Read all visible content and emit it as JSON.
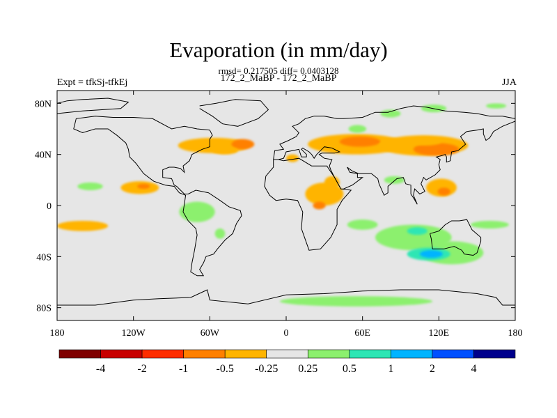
{
  "title": "Evaporation (in mm/day)",
  "stats_line": "rmsd= 0.217505 diff= 0.0403128",
  "subtitle_center": "172_2_MaBP - 172_2_MaBP",
  "subtitle_left": "Expt = tfkSj-tfkEj",
  "subtitle_right": "JJA",
  "map": {
    "background_color": "#e6e6e6",
    "coastline_color": "#000000",
    "lon_range": [
      -180,
      180
    ],
    "lat_range": [
      -90,
      90
    ],
    "x_ticks": [
      {
        "value": -180,
        "label": "180"
      },
      {
        "value": -120,
        "label": "120W"
      },
      {
        "value": -60,
        "label": "60W"
      },
      {
        "value": 0,
        "label": "0"
      },
      {
        "value": 60,
        "label": "60E"
      },
      {
        "value": 120,
        "label": "120E"
      },
      {
        "value": 180,
        "label": "180"
      }
    ],
    "y_ticks": [
      {
        "value": 80,
        "label": "80N"
      },
      {
        "value": 40,
        "label": "40N"
      },
      {
        "value": 0,
        "label": "0"
      },
      {
        "value": -40,
        "label": "40S"
      },
      {
        "value": -80,
        "label": "80S"
      }
    ]
  },
  "colorbar": {
    "colors": [
      "#7f0000",
      "#c80000",
      "#ff2d00",
      "#ff8000",
      "#ffb400",
      "#e6e6e6",
      "#8cf06e",
      "#2de6b4",
      "#00b4ff",
      "#0050ff",
      "#00008c"
    ],
    "labels": [
      "-4",
      "-2",
      "-1",
      "-0.5",
      "-0.25",
      "0.25",
      "0.5",
      "1",
      "2",
      "4"
    ]
  },
  "anomalies": [
    {
      "lon": -57,
      "lat": 47,
      "rx": 28,
      "ry": 6,
      "color": "#ffb400"
    },
    {
      "lon": -34,
      "lat": 48,
      "rx": 9,
      "ry": 4,
      "color": "#ff8000"
    },
    {
      "lon": -48,
      "lat": 43,
      "rx": 10,
      "ry": 3,
      "color": "#ffb400"
    },
    {
      "lon": 5,
      "lat": 37,
      "rx": 5,
      "ry": 3,
      "color": "#ffb400"
    },
    {
      "lon": 30,
      "lat": 9,
      "rx": 15,
      "ry": 9,
      "color": "#ffb400"
    },
    {
      "lon": 26,
      "lat": 0,
      "rx": 5,
      "ry": 3,
      "color": "#ff8000"
    },
    {
      "lon": 36,
      "lat": 18,
      "rx": 6,
      "ry": 5,
      "color": "#ffb400"
    },
    {
      "lon": 55,
      "lat": 48,
      "rx": 38,
      "ry": 8,
      "color": "#ffb400"
    },
    {
      "lon": 58,
      "lat": 50,
      "rx": 16,
      "ry": 4,
      "color": "#ff8000"
    },
    {
      "lon": 108,
      "lat": 47,
      "rx": 35,
      "ry": 8,
      "color": "#ffb400"
    },
    {
      "lon": 118,
      "lat": 44,
      "rx": 18,
      "ry": 5,
      "color": "#ff8000"
    },
    {
      "lon": 110,
      "lat": 50,
      "rx": 12,
      "ry": 3,
      "color": "#ffb400"
    },
    {
      "lon": 122,
      "lat": 14,
      "rx": 12,
      "ry": 7,
      "color": "#ffb400"
    },
    {
      "lon": 124,
      "lat": 11,
      "rx": 5,
      "ry": 3,
      "color": "#ff8000"
    },
    {
      "lon": -115,
      "lat": 14,
      "rx": 15,
      "ry": 5,
      "color": "#ffb400"
    },
    {
      "lon": -112,
      "lat": 15,
      "rx": 5,
      "ry": 2,
      "color": "#ff8000"
    },
    {
      "lon": -160,
      "lat": -16,
      "rx": 20,
      "ry": 4,
      "color": "#ffb400"
    },
    {
      "lon": 56,
      "lat": 60,
      "rx": 7,
      "ry": 3,
      "color": "#8cf06e"
    },
    {
      "lon": 82,
      "lat": 72,
      "rx": 8,
      "ry": 3,
      "color": "#8cf06e"
    },
    {
      "lon": 116,
      "lat": 76,
      "rx": 10,
      "ry": 3,
      "color": "#8cf06e"
    },
    {
      "lon": 165,
      "lat": 78,
      "rx": 8,
      "ry": 2,
      "color": "#8cf06e"
    },
    {
      "lon": -154,
      "lat": 15,
      "rx": 10,
      "ry": 3,
      "color": "#8cf06e"
    },
    {
      "lon": -70,
      "lat": -5,
      "rx": 14,
      "ry": 8,
      "color": "#8cf06e"
    },
    {
      "lon": -52,
      "lat": -22,
      "rx": 4,
      "ry": 4,
      "color": "#8cf06e"
    },
    {
      "lon": 60,
      "lat": -15,
      "rx": 12,
      "ry": 4,
      "color": "#8cf06e"
    },
    {
      "lon": 100,
      "lat": -25,
      "rx": 30,
      "ry": 10,
      "color": "#8cf06e"
    },
    {
      "lon": 130,
      "lat": -37,
      "rx": 25,
      "ry": 9,
      "color": "#8cf06e"
    },
    {
      "lon": 103,
      "lat": -20,
      "rx": 8,
      "ry": 3,
      "color": "#2de6b4"
    },
    {
      "lon": 112,
      "lat": -38,
      "rx": 17,
      "ry": 5,
      "color": "#2de6b4"
    },
    {
      "lon": 114,
      "lat": -38,
      "rx": 9,
      "ry": 3,
      "color": "#00b4ff"
    },
    {
      "lon": 55,
      "lat": -75,
      "rx": 60,
      "ry": 4,
      "color": "#8cf06e"
    },
    {
      "lon": 160,
      "lat": -15,
      "rx": 15,
      "ry": 3,
      "color": "#8cf06e"
    },
    {
      "lon": 85,
      "lat": 20,
      "rx": 8,
      "ry": 3,
      "color": "#8cf06e"
    }
  ],
  "coastlines": [
    [
      [
        -180,
        80
      ],
      [
        -172,
        82
      ],
      [
        -160,
        83
      ],
      [
        -140,
        84
      ],
      [
        -124,
        81
      ],
      [
        -130,
        76
      ],
      [
        -160,
        74
      ],
      [
        -180,
        72
      ]
    ],
    [
      [
        -68,
        78
      ],
      [
        -55,
        80
      ],
      [
        -40,
        83
      ],
      [
        -20,
        82
      ],
      [
        -14,
        75
      ],
      [
        -22,
        68
      ],
      [
        -38,
        62
      ],
      [
        -50,
        64
      ],
      [
        -58,
        70
      ],
      [
        -68,
        76
      ]
    ],
    [
      [
        -60,
        59
      ],
      [
        -70,
        60
      ],
      [
        -80,
        62
      ],
      [
        -90,
        60
      ],
      [
        -105,
        68
      ],
      [
        -120,
        69
      ],
      [
        -136,
        69
      ],
      [
        -150,
        70
      ],
      [
        -165,
        68
      ],
      [
        -167,
        60
      ],
      [
        -160,
        57
      ],
      [
        -150,
        60
      ],
      [
        -140,
        60
      ],
      [
        -133,
        55
      ],
      [
        -126,
        49
      ],
      [
        -124,
        44
      ],
      [
        -123,
        38
      ],
      [
        -118,
        33
      ],
      [
        -112,
        25
      ],
      [
        -104,
        19
      ],
      [
        -95,
        16
      ],
      [
        -88,
        15
      ],
      [
        -84,
        10
      ],
      [
        -79,
        8
      ],
      [
        -80,
        1
      ],
      [
        -81,
        -5
      ],
      [
        -77,
        -12
      ],
      [
        -71,
        -18
      ],
      [
        -70,
        -23
      ],
      [
        -72,
        -35
      ],
      [
        -74,
        -45
      ],
      [
        -75,
        -52
      ],
      [
        -70,
        -55
      ],
      [
        -65,
        -55
      ],
      [
        -68,
        -50
      ],
      [
        -65,
        -45
      ],
      [
        -63,
        -40
      ],
      [
        -57,
        -38
      ],
      [
        -54,
        -34
      ],
      [
        -48,
        -27
      ],
      [
        -42,
        -22
      ],
      [
        -39,
        -14
      ],
      [
        -35,
        -8
      ],
      [
        -36,
        -4
      ],
      [
        -45,
        -1
      ],
      [
        -52,
        4
      ],
      [
        -61,
        10
      ],
      [
        -71,
        12
      ],
      [
        -77,
        9
      ],
      [
        -80,
        9
      ],
      [
        -83,
        12
      ],
      [
        -86,
        15
      ],
      [
        -88,
        16
      ],
      [
        -90,
        21
      ],
      [
        -97,
        22
      ],
      [
        -97,
        28
      ],
      [
        -92,
        30
      ],
      [
        -88,
        30
      ],
      [
        -83,
        29
      ],
      [
        -80,
        26
      ],
      [
        -81,
        31
      ],
      [
        -76,
        35
      ],
      [
        -74,
        40
      ],
      [
        -70,
        42
      ],
      [
        -66,
        44
      ],
      [
        -60,
        46
      ],
      [
        -60,
        52
      ],
      [
        -58,
        55
      ],
      [
        -60,
        59
      ]
    ],
    [
      [
        -10,
        36
      ],
      [
        -6,
        36
      ],
      [
        -2,
        35
      ],
      [
        10,
        37
      ],
      [
        20,
        31
      ],
      [
        32,
        31
      ],
      [
        34,
        28
      ],
      [
        38,
        22
      ],
      [
        43,
        13
      ],
      [
        51,
        12
      ],
      [
        44,
        4
      ],
      [
        40,
        -3
      ],
      [
        40,
        -15
      ],
      [
        35,
        -25
      ],
      [
        27,
        -34
      ],
      [
        18,
        -35
      ],
      [
        12,
        -18
      ],
      [
        13,
        -5
      ],
      [
        9,
        4
      ],
      [
        0,
        5
      ],
      [
        -8,
        4
      ],
      [
        -13,
        8
      ],
      [
        -17,
        15
      ],
      [
        -16,
        23
      ],
      [
        -10,
        30
      ],
      [
        -10,
        36
      ]
    ],
    [
      [
        -10,
        36
      ],
      [
        -9,
        43
      ],
      [
        -2,
        44
      ],
      [
        -5,
        48
      ],
      [
        2,
        51
      ],
      [
        8,
        54
      ],
      [
        10,
        57
      ],
      [
        5,
        62
      ],
      [
        10,
        64
      ],
      [
        15,
        68
      ],
      [
        22,
        70
      ],
      [
        30,
        70
      ],
      [
        40,
        68
      ],
      [
        45,
        68
      ],
      [
        60,
        69
      ],
      [
        70,
        73
      ],
      [
        80,
        73
      ],
      [
        90,
        76
      ],
      [
        100,
        78
      ],
      [
        110,
        77
      ],
      [
        125,
        74
      ],
      [
        140,
        73
      ],
      [
        150,
        72
      ],
      [
        160,
        70
      ],
      [
        170,
        70
      ],
      [
        180,
        68
      ]
    ],
    [
      [
        180,
        66
      ],
      [
        170,
        62
      ],
      [
        163,
        58
      ],
      [
        160,
        53
      ],
      [
        157,
        51
      ],
      [
        155,
        56
      ],
      [
        155,
        60
      ],
      [
        150,
        59
      ],
      [
        142,
        58
      ],
      [
        137,
        54
      ],
      [
        141,
        48
      ],
      [
        135,
        43
      ],
      [
        130,
        42
      ],
      [
        129,
        35
      ],
      [
        126,
        34
      ],
      [
        126,
        38
      ],
      [
        125,
        40
      ],
      [
        122,
        39
      ],
      [
        118,
        38
      ],
      [
        121,
        36
      ],
      [
        120,
        32
      ],
      [
        121,
        28
      ],
      [
        117,
        24
      ],
      [
        110,
        20
      ],
      [
        108,
        22
      ],
      [
        106,
        17
      ],
      [
        109,
        11
      ],
      [
        105,
        9
      ],
      [
        101,
        13
      ],
      [
        100,
        8
      ],
      [
        103,
        1
      ],
      [
        100,
        6
      ],
      [
        98,
        9
      ],
      [
        98,
        16
      ],
      [
        94,
        17
      ],
      [
        92,
        22
      ],
      [
        87,
        21
      ],
      [
        80,
        15
      ],
      [
        80,
        10
      ],
      [
        77,
        8
      ],
      [
        73,
        17
      ],
      [
        72,
        21
      ],
      [
        67,
        25
      ],
      [
        57,
        25
      ],
      [
        52,
        27
      ],
      [
        48,
        30
      ],
      [
        50,
        26
      ],
      [
        56,
        25
      ],
      [
        56,
        22
      ],
      [
        60,
        22
      ],
      [
        52,
        16
      ],
      [
        45,
        13
      ],
      [
        43,
        13
      ],
      [
        38,
        22
      ],
      [
        35,
        28
      ],
      [
        34,
        31
      ],
      [
        36,
        36
      ],
      [
        30,
        37
      ],
      [
        26,
        40
      ],
      [
        28,
        41
      ],
      [
        38,
        41
      ],
      [
        42,
        42
      ],
      [
        36,
        45
      ],
      [
        30,
        46
      ],
      [
        28,
        44
      ],
      [
        24,
        40
      ],
      [
        22,
        37
      ],
      [
        20,
        40
      ],
      [
        18,
        42
      ],
      [
        13,
        45
      ],
      [
        12,
        44
      ],
      [
        16,
        40
      ],
      [
        16,
        38
      ],
      [
        12,
        38
      ],
      [
        10,
        44
      ],
      [
        5,
        43
      ],
      [
        0,
        42
      ],
      [
        -2,
        37
      ],
      [
        -6,
        36
      ]
    ],
    [
      [
        113,
        -22
      ],
      [
        114,
        -26
      ],
      [
        115,
        -34
      ],
      [
        124,
        -34
      ],
      [
        132,
        -32
      ],
      [
        138,
        -35
      ],
      [
        140,
        -38
      ],
      [
        147,
        -39
      ],
      [
        150,
        -37
      ],
      [
        153,
        -28
      ],
      [
        153,
        -25
      ],
      [
        146,
        -19
      ],
      [
        142,
        -11
      ],
      [
        136,
        -12
      ],
      [
        130,
        -12
      ],
      [
        125,
        -15
      ],
      [
        120,
        -20
      ],
      [
        113,
        -22
      ]
    ],
    [
      [
        -180,
        -78
      ],
      [
        -150,
        -78
      ],
      [
        -120,
        -74
      ],
      [
        -100,
        -73
      ],
      [
        -75,
        -72
      ],
      [
        -62,
        -66
      ],
      [
        -60,
        -74
      ],
      [
        -30,
        -77
      ],
      [
        0,
        -70
      ],
      [
        30,
        -69
      ],
      [
        60,
        -67
      ],
      [
        90,
        -66
      ],
      [
        120,
        -66
      ],
      [
        150,
        -69
      ],
      [
        165,
        -72
      ],
      [
        170,
        -78
      ],
      [
        180,
        -78
      ]
    ]
  ]
}
